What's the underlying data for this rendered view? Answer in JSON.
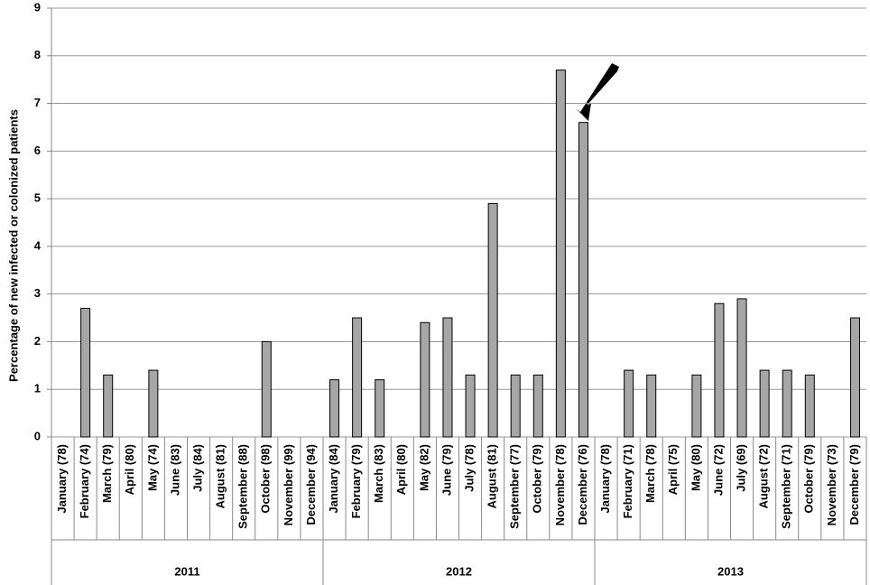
{
  "chart_data": {
    "type": "bar",
    "y_label": "Percentage of new infected or colonized patients",
    "categories": [
      "January (78)",
      "February (74)",
      "March (79)",
      "April (80)",
      "May (74)",
      "June (83)",
      "July (84)",
      "August (81)",
      "September (88)",
      "October (98)",
      "November (99)",
      "December (94)",
      "January (84)",
      "February (79)",
      "March (83)",
      "April (80)",
      "May (82)",
      "June (79)",
      "July (78)",
      "August (81)",
      "September (77)",
      "October (79)",
      "November (78)",
      "December (76)",
      "January (78)",
      "February (71)",
      "March (78)",
      "April (75)",
      "May (80)",
      "June (72)",
      "July (69)",
      "August (72)",
      "September (71)",
      "October (79)",
      "November (73)",
      "December (79)"
    ],
    "groups": [
      "2011",
      "2012",
      "2013"
    ],
    "values": [
      0,
      2.7,
      1.3,
      0,
      1.4,
      0,
      0,
      0,
      0,
      2.0,
      0,
      0,
      1.2,
      2.5,
      1.2,
      0,
      2.4,
      2.5,
      1.3,
      4.9,
      1.3,
      1.3,
      7.7,
      6.6,
      0,
      1.4,
      1.3,
      0,
      1.3,
      2.8,
      2.9,
      1.4,
      1.4,
      1.3,
      0,
      2.5
    ],
    "color": "#a6a6a6",
    "ylim": [
      0,
      9
    ],
    "yticks": [
      0,
      1,
      2,
      3,
      4,
      5,
      6,
      7,
      8,
      9
    ],
    "grid": true
  }
}
